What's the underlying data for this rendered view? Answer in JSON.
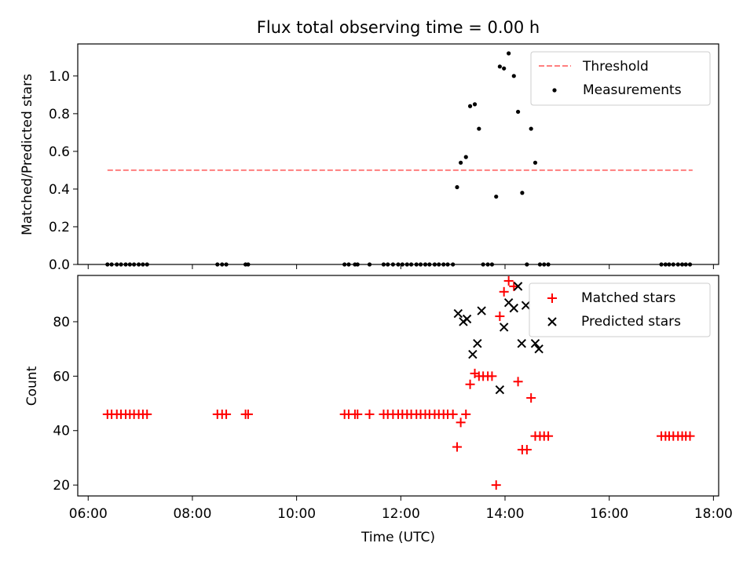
{
  "title": "Flux total observing time = 0.00 h",
  "chart_data": [
    {
      "type": "scatter",
      "title": "Flux total observing time = 0.00 h",
      "xlabel": "",
      "ylabel": "Matched/Predicted stars",
      "x_axis": "time (UTC), decimal hours",
      "xlim": [
        5.8,
        18.1
      ],
      "ylim": [
        0,
        1.17
      ],
      "yticks": [
        0.0,
        0.2,
        0.4,
        0.6,
        0.8,
        1.0
      ],
      "ytick_labels": [
        "0.0",
        "0.2",
        "0.4",
        "0.6",
        "0.8",
        "1.0"
      ],
      "legend": {
        "placement": "top-right",
        "entries": [
          "Threshold",
          "Measurements"
        ]
      },
      "series": [
        {
          "name": "Threshold",
          "style": "dashed-line",
          "color": "#ff7f7f",
          "x": [
            6.37,
            17.6
          ],
          "y": [
            0.5,
            0.5
          ]
        },
        {
          "name": "Measurements",
          "style": "dot",
          "color": "#000000",
          "x": [
            6.37,
            6.45,
            6.55,
            6.63,
            6.72,
            6.8,
            6.88,
            6.97,
            7.05,
            7.13,
            8.48,
            8.57,
            8.65,
            9.02,
            9.07,
            10.92,
            11.0,
            11.12,
            11.17,
            11.4,
            11.67,
            11.75,
            11.85,
            11.95,
            12.03,
            12.12,
            12.2,
            12.3,
            12.38,
            12.47,
            12.55,
            12.65,
            12.73,
            12.82,
            12.9,
            13.0,
            13.08,
            13.15,
            13.25,
            13.33,
            13.42,
            13.5,
            13.58,
            13.67,
            13.75,
            13.83,
            13.9,
            13.98,
            14.07,
            14.17,
            14.25,
            14.33,
            14.42,
            14.5,
            14.58,
            14.67,
            14.75,
            14.83,
            17.0,
            17.08,
            17.15,
            17.23,
            17.32,
            17.4,
            17.47,
            17.55
          ],
          "y": [
            0,
            0,
            0,
            0,
            0,
            0,
            0,
            0,
            0,
            0,
            0,
            0,
            0,
            0,
            0,
            0,
            0,
            0,
            0,
            0,
            0,
            0,
            0,
            0,
            0,
            0,
            0,
            0,
            0,
            0,
            0,
            0,
            0,
            0,
            0,
            0,
            0.41,
            0.54,
            0.57,
            0.84,
            0.85,
            0.72,
            0,
            0,
            0,
            0.36,
            1.05,
            1.04,
            1.12,
            1.0,
            0.81,
            0.38,
            0,
            0.72,
            0.54,
            0,
            0,
            0,
            0,
            0,
            0,
            0,
            0,
            0,
            0,
            0
          ]
        }
      ]
    },
    {
      "type": "scatter",
      "xlabel": "Time (UTC)",
      "ylabel": "Count",
      "x_axis": "time (UTC), decimal hours",
      "xlim": [
        5.8,
        18.1
      ],
      "ylim": [
        16,
        97
      ],
      "xticks": [
        6,
        8,
        10,
        12,
        14,
        16,
        18
      ],
      "xtick_labels": [
        "06:00",
        "08:00",
        "10:00",
        "12:00",
        "14:00",
        "16:00",
        "18:00"
      ],
      "yticks": [
        20,
        40,
        60,
        80
      ],
      "ytick_labels": [
        "20",
        "40",
        "60",
        "80"
      ],
      "legend": {
        "placement": "top-right",
        "entries": [
          "Matched stars",
          "Predicted stars"
        ]
      },
      "series": [
        {
          "name": "Matched stars",
          "marker": "plus",
          "color": "#ff0000",
          "x": [
            6.37,
            6.45,
            6.55,
            6.63,
            6.72,
            6.8,
            6.88,
            6.97,
            7.05,
            7.13,
            8.48,
            8.57,
            8.65,
            9.02,
            9.07,
            10.92,
            11.0,
            11.12,
            11.17,
            11.4,
            11.67,
            11.75,
            11.85,
            11.95,
            12.03,
            12.12,
            12.2,
            12.3,
            12.38,
            12.47,
            12.55,
            12.65,
            12.73,
            12.82,
            12.9,
            13.0,
            13.08,
            13.15,
            13.25,
            13.33,
            13.42,
            13.5,
            13.58,
            13.67,
            13.75,
            13.83,
            13.9,
            13.98,
            14.07,
            14.17,
            14.25,
            14.33,
            14.42,
            14.5,
            14.58,
            14.67,
            14.75,
            14.83,
            17.0,
            17.08,
            17.15,
            17.23,
            17.32,
            17.4,
            17.47,
            17.55
          ],
          "y": [
            46,
            46,
            46,
            46,
            46,
            46,
            46,
            46,
            46,
            46,
            46,
            46,
            46,
            46,
            46,
            46,
            46,
            46,
            46,
            46,
            46,
            46,
            46,
            46,
            46,
            46,
            46,
            46,
            46,
            46,
            46,
            46,
            46,
            46,
            46,
            46,
            34,
            43,
            46,
            57,
            61,
            60,
            60,
            60,
            60,
            20,
            82,
            91,
            95,
            93,
            58,
            33,
            33,
            52,
            38,
            38,
            38,
            38,
            38,
            38,
            38,
            38,
            38,
            38,
            38,
            38
          ]
        },
        {
          "name": "Predicted stars",
          "marker": "x",
          "color": "#000000",
          "x": [
            13.1,
            13.2,
            13.27,
            13.38,
            13.47,
            13.55,
            13.9,
            13.98,
            14.07,
            14.17,
            14.25,
            14.32,
            14.4,
            14.58,
            14.65
          ],
          "y": [
            83,
            80,
            81,
            68,
            72,
            84,
            55,
            78,
            87,
            85,
            93,
            72,
            86,
            72,
            70
          ]
        }
      ]
    }
  ]
}
